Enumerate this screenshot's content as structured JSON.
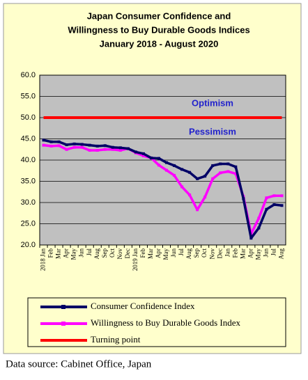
{
  "chart_data": {
    "type": "line",
    "title": [
      "Japan Consumer Confidence and",
      "Willingness to Buy Durable Goods Indices",
      "January 2018 - August 2020"
    ],
    "categories": [
      "2018 Jan",
      "Feb",
      "Mar",
      "Apr",
      "May",
      "Jun",
      "Jul",
      "Aug",
      "Sep",
      "Oct",
      "Nov",
      "Dec",
      "2019 Jan",
      "Feb",
      "Mar",
      "Apr",
      "May",
      "Jun",
      "Jul",
      "Aug",
      "Sep",
      "Oct",
      "Nov",
      "Dec",
      "Jan",
      "Feb",
      "Mar",
      "Apr",
      "May",
      "Jun",
      "Jul",
      "Aug"
    ],
    "series": [
      {
        "name": "Consumer Confidence Index",
        "color": "#000066",
        "values": [
          44.7,
          44.3,
          44.3,
          43.6,
          43.8,
          43.7,
          43.5,
          43.3,
          43.4,
          43.0,
          42.9,
          42.7,
          41.9,
          41.5,
          40.5,
          40.4,
          39.4,
          38.7,
          37.8,
          37.1,
          35.6,
          36.2,
          38.7,
          39.1,
          39.1,
          38.4,
          30.9,
          21.6,
          24.0,
          28.4,
          29.5,
          29.3
        ]
      },
      {
        "name": "Willingness to Buy Durable Goods Index",
        "color": "#ff00ff",
        "values": [
          43.5,
          43.3,
          43.4,
          42.5,
          43.0,
          43.0,
          42.3,
          42.3,
          42.5,
          42.5,
          42.3,
          42.7,
          41.7,
          41.0,
          40.5,
          38.8,
          37.6,
          36.4,
          33.7,
          31.8,
          28.3,
          31.3,
          35.6,
          37.0,
          37.3,
          36.8,
          31.4,
          22.6,
          26.3,
          31.1,
          31.6,
          31.6
        ]
      },
      {
        "name": "Turning point",
        "color": "#ff0000",
        "values": [
          50,
          50,
          50,
          50,
          50,
          50,
          50,
          50,
          50,
          50,
          50,
          50,
          50,
          50,
          50,
          50,
          50,
          50,
          50,
          50,
          50,
          50,
          50,
          50,
          50,
          50,
          50,
          50,
          50,
          50,
          50,
          50
        ]
      }
    ],
    "annotations": [
      "Optimism",
      "Pessimism"
    ],
    "ylim": [
      20,
      60
    ],
    "yticks": [
      {
        "value": 20,
        "label": "20.0"
      },
      {
        "value": 25,
        "label": "25.0"
      },
      {
        "value": 30,
        "label": "30.0"
      },
      {
        "value": 35,
        "label": "35.0"
      },
      {
        "value": 40,
        "label": "40.0"
      },
      {
        "value": 45,
        "label": "45.0"
      },
      {
        "value": 50,
        "label": "50.0"
      },
      {
        "value": 55,
        "label": "55.0"
      },
      {
        "value": 60,
        "label": "60.0"
      }
    ],
    "grid": true,
    "source": "Data source: Cabinet Office, Japan"
  }
}
